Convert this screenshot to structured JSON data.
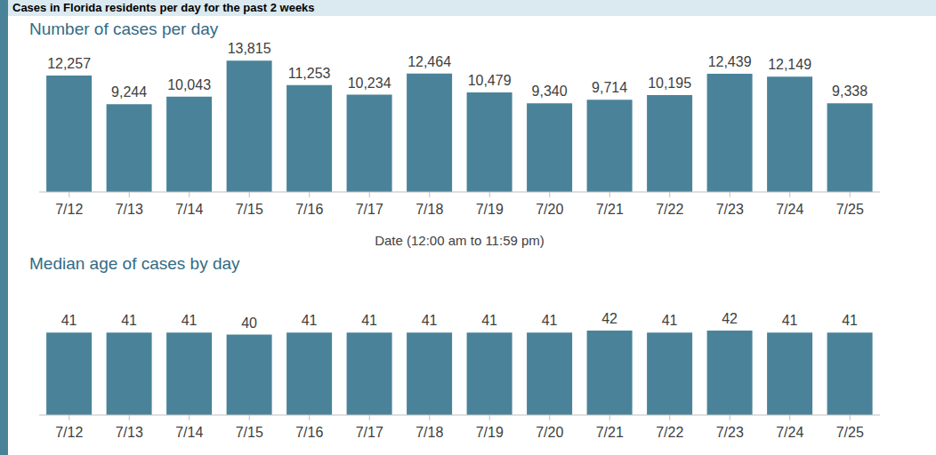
{
  "title": "Cases in Florida residents per day for the past 2 weeks",
  "chart_data": [
    {
      "type": "bar",
      "title": "Number of cases per day",
      "categories": [
        "7/12",
        "7/13",
        "7/14",
        "7/15",
        "7/16",
        "7/17",
        "7/18",
        "7/19",
        "7/20",
        "7/21",
        "7/22",
        "7/23",
        "7/24",
        "7/25"
      ],
      "values": [
        12257,
        9244,
        10043,
        13815,
        11253,
        10234,
        12464,
        10479,
        9340,
        9714,
        10195,
        12439,
        12149,
        9338
      ],
      "value_labels": [
        "12,257",
        "9,244",
        "10,043",
        "13,815",
        "11,253",
        "10,234",
        "12,464",
        "10,479",
        "9,340",
        "9,714",
        "10,195",
        "12,439",
        "12,149",
        "9,338"
      ],
      "xlabel": "Date (12:00 am to 11:59 pm)",
      "color": "#4a8399",
      "ylim": [
        0,
        16000
      ],
      "data_labels": true,
      "tick_labels": "x",
      "grid": false
    },
    {
      "type": "bar",
      "title": "Median age of cases by day",
      "categories": [
        "7/12",
        "7/13",
        "7/14",
        "7/15",
        "7/16",
        "7/17",
        "7/18",
        "7/19",
        "7/20",
        "7/21",
        "7/22",
        "7/23",
        "7/24",
        "7/25"
      ],
      "values": [
        41,
        41,
        41,
        40,
        41,
        41,
        41,
        41,
        41,
        42,
        41,
        42,
        41,
        41
      ],
      "color": "#4a8399",
      "ylim": [
        0,
        50
      ],
      "data_labels": true,
      "tick_labels": "x",
      "grid": false
    }
  ]
}
